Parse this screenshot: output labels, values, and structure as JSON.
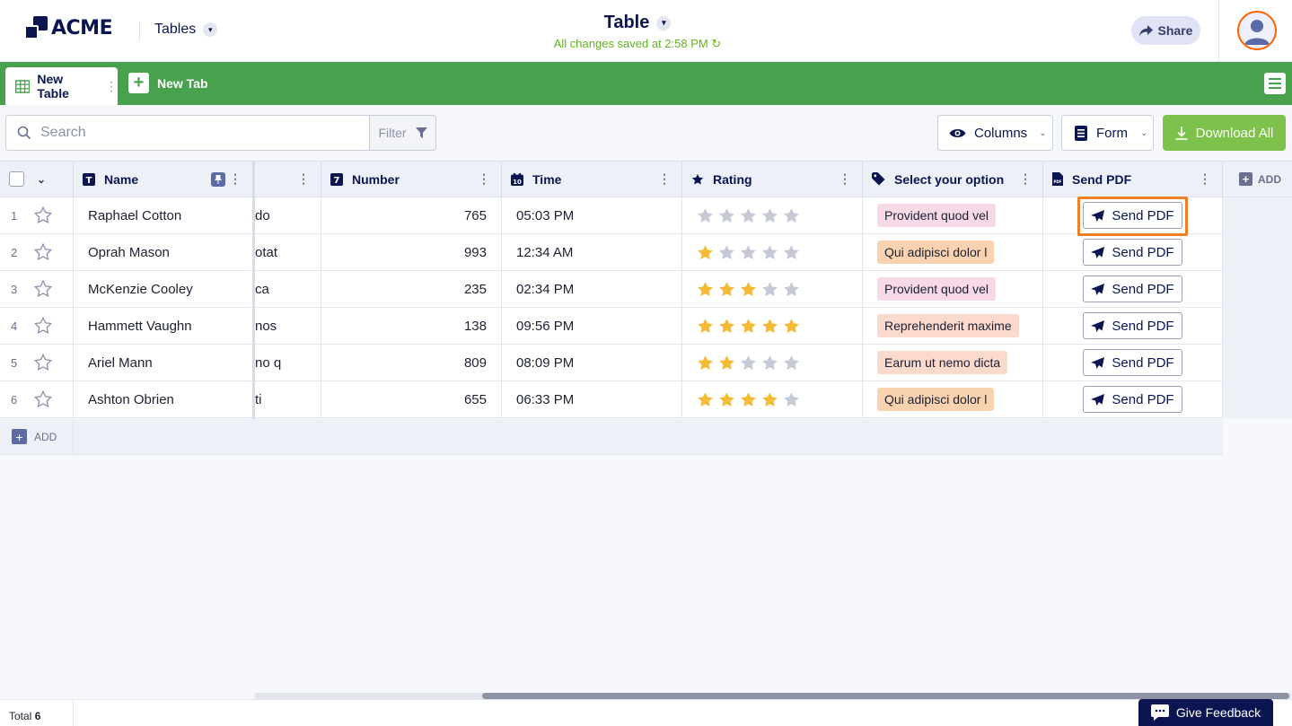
{
  "app": {
    "brand": "ACME",
    "section_label": "Tables",
    "title": "Table",
    "save_status": "All changes saved at 2:58 PM",
    "share_label": "Share"
  },
  "tabs": {
    "active_label": "New Table",
    "new_tab_label": "New Tab"
  },
  "toolbar": {
    "search_placeholder": "Search",
    "filter_label": "Filter",
    "columns_label": "Columns",
    "form_label": "Form",
    "download_label": "Download All"
  },
  "columns": {
    "name": "Name",
    "number": "Number",
    "time": "Time",
    "rating": "Rating",
    "select": "Select your option",
    "send_pdf": "Send PDF",
    "add": "ADD"
  },
  "rows": [
    {
      "num": "1",
      "name": "Raphael Cotton",
      "hidden": "do",
      "number": "765",
      "time": "05:03 PM",
      "rating": 0,
      "option": "Provident quod vel",
      "option_color": "#f8d9e7",
      "pdf": "Send PDF"
    },
    {
      "num": "2",
      "name": "Oprah Mason",
      "hidden": "otat",
      "number": "993",
      "time": "12:34 AM",
      "rating": 1,
      "option": "Qui adipisci dolor l",
      "option_color": "#f9d3b0",
      "pdf": "Send PDF"
    },
    {
      "num": "3",
      "name": "McKenzie Cooley",
      "hidden": "ca",
      "number": "235",
      "time": "02:34 PM",
      "rating": 3,
      "option": "Provident quod vel",
      "option_color": "#f8d9e7",
      "pdf": "Send PDF"
    },
    {
      "num": "4",
      "name": "Hammett Vaughn",
      "hidden": "nos",
      "number": "138",
      "time": "09:56 PM",
      "rating": 5,
      "option": "Reprehenderit maxime",
      "option_color": "#fbd9cc",
      "pdf": "Send PDF"
    },
    {
      "num": "5",
      "name": "Ariel Mann",
      "hidden": "no q",
      "number": "809",
      "time": "08:09 PM",
      "rating": 2,
      "option": "Earum ut nemo dicta",
      "option_color": "#fbd9cc",
      "pdf": "Send PDF"
    },
    {
      "num": "6",
      "name": "Ashton Obrien",
      "hidden": "ti",
      "number": "655",
      "time": "06:33 PM",
      "rating": 4,
      "option": "Qui adipisci dolor l",
      "option_color": "#f9d3b0",
      "pdf": "Send PDF"
    }
  ],
  "add_row_label": "ADD",
  "footer": {
    "total_label": "Total",
    "total_count": "6",
    "feedback_label": "Give Feedback"
  },
  "colors": {
    "brand_navy": "#0a1551",
    "tab_green": "#48a14d",
    "download_green": "#7fc24b",
    "star_filled": "#f5bb34",
    "star_empty": "#c6c9d6",
    "focus_orange": "#f07e24",
    "saved_green": "#64b21e"
  },
  "icons": {
    "logo": "acme-logo-icon",
    "search": "search-icon",
    "filter": "funnel-icon",
    "columns": "eye-icon",
    "form": "form-icon",
    "download": "download-icon",
    "send": "paper-plane-icon",
    "feedback": "chat-bubble-icon"
  }
}
